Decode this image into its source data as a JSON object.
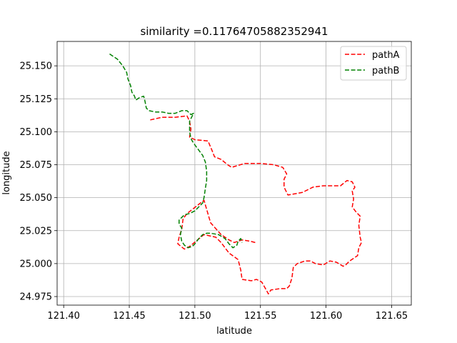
{
  "chart_data": {
    "type": "line",
    "title": "similarity =0.11764705882352941",
    "xlabel": "latitude",
    "ylabel": "longitude",
    "xlim": [
      121.395,
      121.665
    ],
    "ylim": [
      24.9685,
      25.1685
    ],
    "xticks": [
      121.4,
      121.45,
      121.5,
      121.55,
      121.6,
      121.65
    ],
    "xtick_labels": [
      "121.40",
      "121.45",
      "121.50",
      "121.55",
      "121.60",
      "121.65"
    ],
    "yticks": [
      24.975,
      25.0,
      25.025,
      25.05,
      25.075,
      25.1,
      25.125,
      25.15
    ],
    "ytick_labels": [
      "24.975",
      "25.000",
      "25.025",
      "25.050",
      "25.075",
      "25.100",
      "25.125",
      "25.150"
    ],
    "grid": true,
    "legend_position": "top-right",
    "series": [
      {
        "name": "pathA",
        "color": "#ff0000",
        "style": "dashed",
        "x": [
          121.466,
          121.475,
          121.485,
          121.494,
          121.496,
          121.497,
          121.496,
          121.5,
          121.51,
          121.513,
          121.515,
          121.52,
          121.525,
          121.528,
          121.538,
          121.55,
          121.56,
          121.567,
          121.57,
          121.568,
          121.568,
          121.571,
          121.582,
          121.59,
          121.598,
          121.611,
          121.616,
          121.62,
          121.622,
          121.62,
          121.621,
          121.62,
          121.623,
          121.626,
          121.625,
          121.626,
          121.627,
          121.625,
          121.624,
          121.618,
          121.615,
          121.613,
          121.608,
          121.603,
          121.598,
          121.592,
          121.588,
          121.584,
          121.578,
          121.575,
          121.574,
          121.572,
          121.57,
          121.565,
          121.558,
          121.556,
          121.555,
          121.551,
          121.547,
          121.543,
          121.536,
          121.535,
          121.533,
          121.526,
          121.52,
          121.516,
          121.507,
          121.496,
          121.492,
          121.487,
          121.488,
          121.49,
          121.491,
          121.494,
          121.498,
          121.503,
          121.507,
          121.512,
          121.52,
          121.526,
          121.53,
          121.536,
          121.542,
          121.546
        ],
        "y": [
          25.109,
          25.111,
          25.111,
          25.112,
          25.108,
          25.102,
          25.096,
          25.094,
          25.093,
          25.086,
          25.081,
          25.079,
          25.075,
          25.073,
          25.076,
          25.076,
          25.075,
          25.073,
          25.068,
          25.064,
          25.058,
          25.052,
          25.054,
          25.058,
          25.059,
          25.059,
          25.063,
          25.062,
          25.058,
          25.055,
          25.049,
          25.043,
          25.039,
          25.036,
          25.029,
          25.02,
          25.016,
          25.012,
          25.006,
          25.002,
          24.999,
          24.998,
          25.001,
          25.002,
          24.999,
          25.0,
          25.002,
          25.002,
          25.0,
          24.997,
          24.989,
          24.983,
          24.981,
          24.981,
          24.98,
          24.977,
          24.979,
          24.986,
          24.988,
          24.987,
          24.988,
          24.995,
          25.003,
          25.008,
          25.016,
          25.02,
          25.022,
          25.013,
          25.011,
          25.015,
          25.02,
          25.026,
          25.034,
          25.038,
          25.041,
          25.045,
          25.048,
          25.031,
          25.022,
          25.018,
          25.016,
          25.018,
          25.017,
          25.016
        ]
      },
      {
        "name": "pathB",
        "color": "#008000",
        "style": "dashed",
        "x": [
          121.435,
          121.441,
          121.445,
          121.448,
          121.449,
          121.451,
          121.452,
          121.454,
          121.455,
          121.458,
          121.461,
          121.462,
          121.463,
          121.465,
          121.47,
          121.475,
          121.48,
          121.485,
          121.49,
          121.494,
          121.497,
          121.499,
          121.496,
          121.496,
          121.497,
          121.498,
          121.5,
          121.503,
          121.506,
          121.508,
          121.509,
          121.509,
          121.508,
          121.507,
          121.506,
          121.503,
          121.5,
          121.496,
          121.492,
          121.49,
          121.488,
          121.488,
          121.49,
          121.489,
          121.49,
          121.492,
          121.495,
          121.498,
          121.5,
          121.503,
          121.506,
          121.509,
          121.512,
          121.518,
          121.523,
          121.526,
          121.529,
          121.532,
          121.533,
          121.535,
          121.536
        ],
        "y": [
          25.159,
          25.155,
          25.15,
          25.145,
          25.14,
          25.135,
          25.13,
          25.127,
          25.124,
          25.126,
          25.127,
          25.123,
          25.118,
          25.116,
          25.115,
          25.115,
          25.114,
          25.114,
          25.116,
          25.116,
          25.113,
          25.114,
          25.108,
          25.1,
          25.095,
          25.093,
          25.09,
          25.086,
          25.082,
          25.077,
          25.07,
          25.063,
          25.057,
          25.05,
          25.046,
          25.043,
          25.04,
          25.038,
          25.037,
          25.035,
          25.033,
          25.03,
          25.027,
          25.022,
          25.017,
          25.014,
          25.012,
          25.013,
          25.015,
          25.019,
          25.022,
          25.023,
          25.023,
          25.022,
          25.019,
          25.015,
          25.012,
          25.014,
          25.017,
          25.019,
          25.016
        ]
      }
    ]
  }
}
